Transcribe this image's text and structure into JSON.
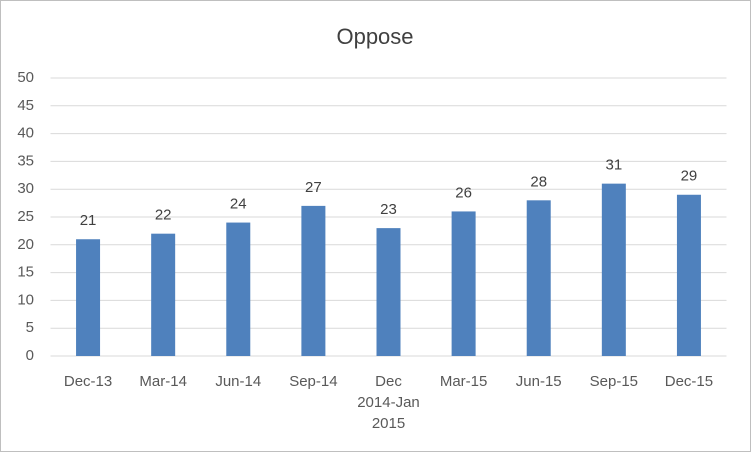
{
  "chart_data": {
    "type": "bar",
    "title": "Oppose",
    "categories": [
      "Dec-13",
      "Mar-14",
      "Jun-14",
      "Sep-14",
      "Dec 2014-Jan 2015",
      "Mar-15",
      "Jun-15",
      "Sep-15",
      "Dec-15"
    ],
    "values": [
      21,
      22,
      24,
      27,
      23,
      26,
      28,
      31,
      29
    ],
    "color": "#4f81bd",
    "ylim": [
      0,
      50
    ],
    "yticks": [
      0,
      5,
      10,
      15,
      20,
      25,
      30,
      35,
      40,
      45,
      50
    ],
    "grid": true,
    "data_labels": true
  }
}
